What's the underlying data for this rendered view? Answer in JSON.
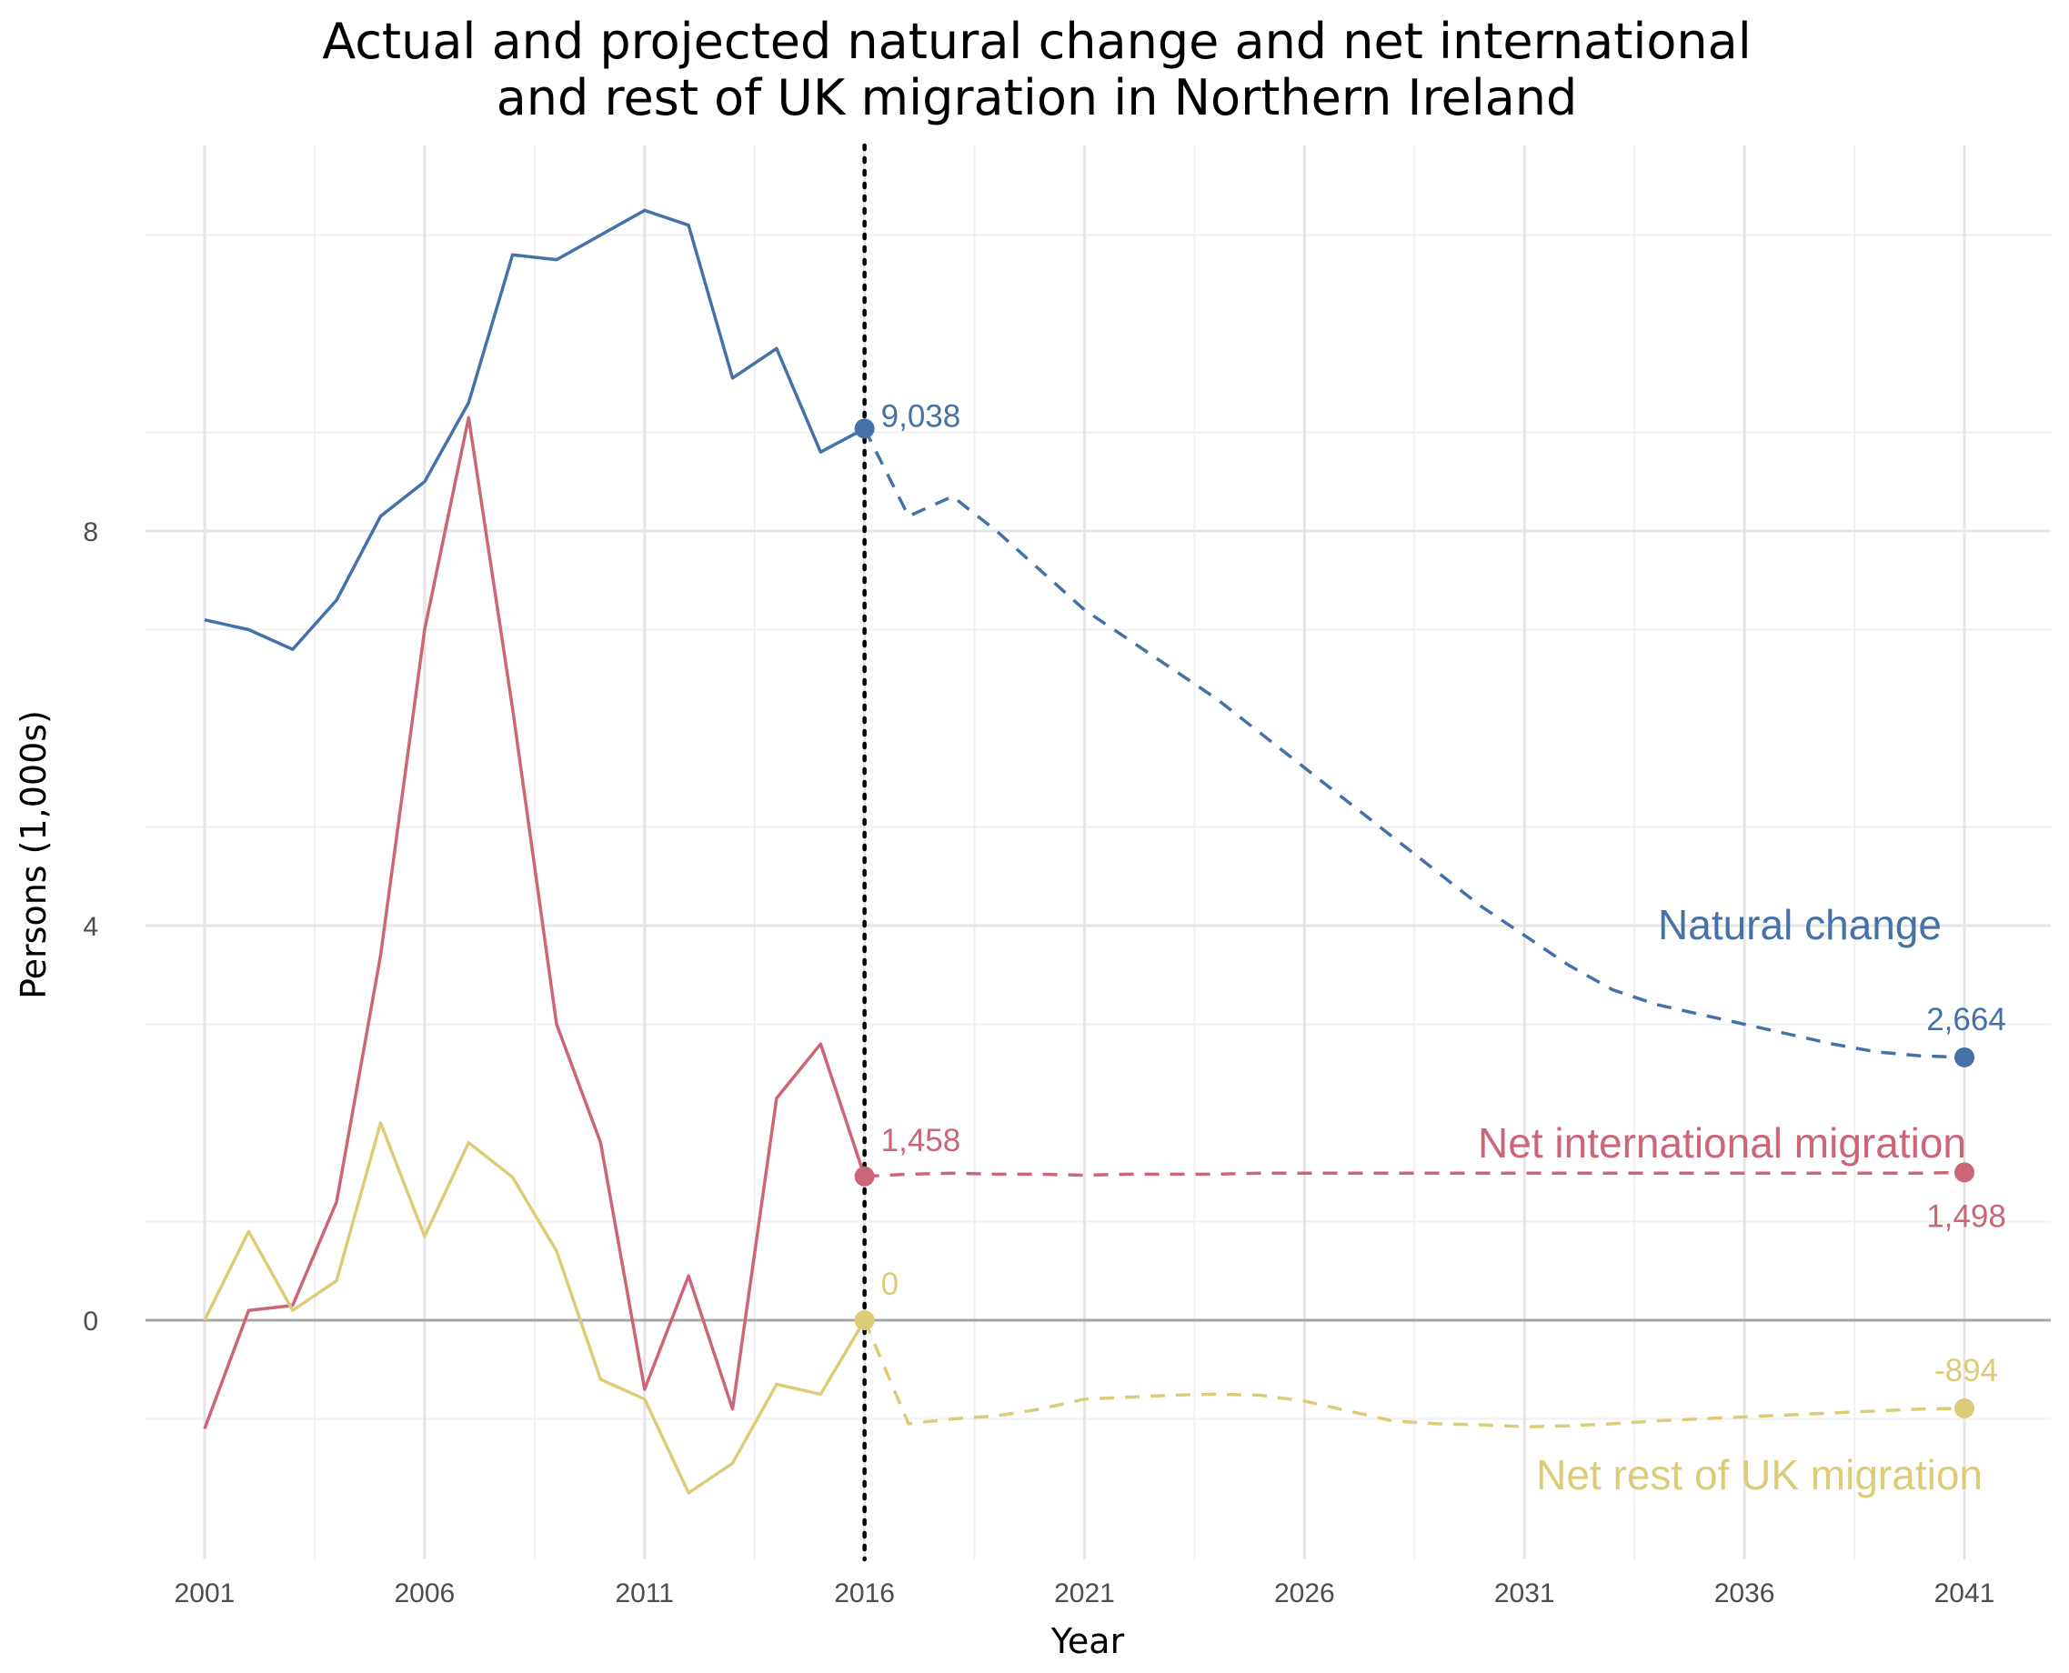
{
  "chart_data": {
    "type": "line",
    "title_line1": "Actual and projected natural change and net international",
    "title_line2": "and rest of UK migration in Northern Ireland",
    "xlabel": "Year",
    "ylabel": "Persons (1,000s)",
    "xlim": [
      2001,
      2041
    ],
    "ylim": [
      -2,
      12
    ],
    "x_ticks": [
      "2001",
      "2006",
      "2011",
      "2016",
      "2021",
      "2026",
      "2031",
      "2036",
      "2041"
    ],
    "y_ticks": [
      "0",
      "4",
      "8"
    ],
    "projection_start": 2016,
    "grid": true,
    "series": [
      {
        "name": "Natural change",
        "color": "#4472a8",
        "actual_x": [
          2001,
          2002,
          2003,
          2004,
          2005,
          2006,
          2007,
          2008,
          2009,
          2010,
          2011,
          2012,
          2013,
          2014,
          2015,
          2016
        ],
        "actual_y": [
          7.1,
          7.0,
          6.8,
          7.3,
          8.15,
          8.5,
          9.3,
          10.8,
          10.75,
          11.0,
          11.25,
          11.1,
          9.55,
          9.85,
          8.8,
          9.038
        ],
        "projected_x": [
          2016,
          2017,
          2018,
          2019,
          2020,
          2021,
          2022,
          2023,
          2024,
          2025,
          2026,
          2027,
          2028,
          2029,
          2030,
          2031,
          2032,
          2033,
          2034,
          2035,
          2036,
          2037,
          2038,
          2039,
          2040,
          2041
        ],
        "projected_y": [
          9.038,
          8.15,
          8.35,
          8.0,
          7.6,
          7.2,
          6.9,
          6.6,
          6.3,
          5.95,
          5.6,
          5.25,
          4.9,
          4.55,
          4.2,
          3.9,
          3.6,
          3.35,
          3.2,
          3.1,
          3.0,
          2.9,
          2.8,
          2.72,
          2.68,
          2.664
        ],
        "start_label": "9,038",
        "end_label": "2,664"
      },
      {
        "name": "Net international migration",
        "color": "#cc6677",
        "actual_x": [
          2001,
          2002,
          2003,
          2004,
          2005,
          2006,
          2007,
          2008,
          2009,
          2010,
          2011,
          2012,
          2013,
          2014,
          2015,
          2016
        ],
        "actual_y": [
          -1.1,
          0.1,
          0.15,
          1.2,
          3.7,
          7.0,
          9.15,
          6.2,
          3.0,
          1.8,
          -0.7,
          0.45,
          -0.9,
          2.25,
          2.8,
          1.458
        ],
        "projected_x": [
          2016,
          2017,
          2018,
          2019,
          2020,
          2021,
          2022,
          2023,
          2024,
          2025,
          2026,
          2027,
          2028,
          2029,
          2030,
          2031,
          2032,
          2033,
          2034,
          2035,
          2036,
          2037,
          2038,
          2039,
          2040,
          2041
        ],
        "projected_y": [
          1.458,
          1.48,
          1.49,
          1.48,
          1.48,
          1.47,
          1.48,
          1.48,
          1.48,
          1.49,
          1.49,
          1.49,
          1.49,
          1.49,
          1.49,
          1.49,
          1.49,
          1.49,
          1.49,
          1.49,
          1.49,
          1.49,
          1.49,
          1.49,
          1.49,
          1.498
        ],
        "start_label": "1,458",
        "end_label": "1,498"
      },
      {
        "name": "Net rest of UK migration",
        "color": "#ddcc77",
        "actual_x": [
          2001,
          2002,
          2003,
          2004,
          2005,
          2006,
          2007,
          2008,
          2009,
          2010,
          2011,
          2012,
          2013,
          2014,
          2015,
          2016
        ],
        "actual_y": [
          0.0,
          0.9,
          0.1,
          0.4,
          2.0,
          0.85,
          1.8,
          1.45,
          0.7,
          -0.6,
          -0.8,
          -1.75,
          -1.45,
          -0.65,
          -0.75,
          0.0
        ],
        "projected_x": [
          2016,
          2017,
          2018,
          2019,
          2020,
          2021,
          2022,
          2023,
          2024,
          2025,
          2026,
          2027,
          2028,
          2029,
          2030,
          2031,
          2032,
          2033,
          2034,
          2035,
          2036,
          2037,
          2038,
          2039,
          2040,
          2041
        ],
        "projected_y": [
          0.0,
          -1.05,
          -1.0,
          -0.97,
          -0.9,
          -0.8,
          -0.78,
          -0.76,
          -0.75,
          -0.76,
          -0.82,
          -0.92,
          -1.02,
          -1.05,
          -1.06,
          -1.08,
          -1.07,
          -1.05,
          -1.02,
          -1.0,
          -0.98,
          -0.96,
          -0.94,
          -0.92,
          -0.9,
          -0.894
        ],
        "start_label": "0",
        "end_label": "-894"
      }
    ]
  }
}
